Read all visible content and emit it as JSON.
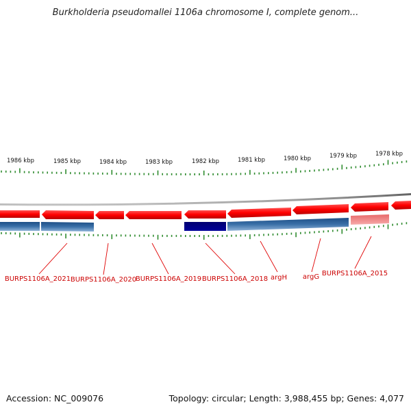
{
  "title": "Burkholderia pseudomallei 1106a chromosome I, complete genom...",
  "footer": {
    "accession": "Accession: NC_009076",
    "summary": "Topology: circular; Length: 3,988,455 bp; Genes: 4,077"
  },
  "colors": {
    "backbone": "#808080",
    "forward_gene": "#ff0000",
    "reverse_feature": "#3a70a8",
    "selected_feature": "#000080",
    "light_feature": "#f08080",
    "tick": "#2e8b2e",
    "label": "#cc0000"
  },
  "scale_labels": [
    "1986 kbp",
    "1985 kbp",
    "1984 kbp",
    "1983 kbp",
    "1982 kbp",
    "1981 kbp",
    "1980 kbp",
    "1979 kbp",
    "1978 kbp"
  ],
  "gene_labels": [
    "BURPS1106A_2021",
    "BURPS1106A_2020",
    "BURPS1106A_2019",
    "BURPS1106A_2018",
    "argH",
    "argG",
    "BURPS1106A_2015"
  ]
}
